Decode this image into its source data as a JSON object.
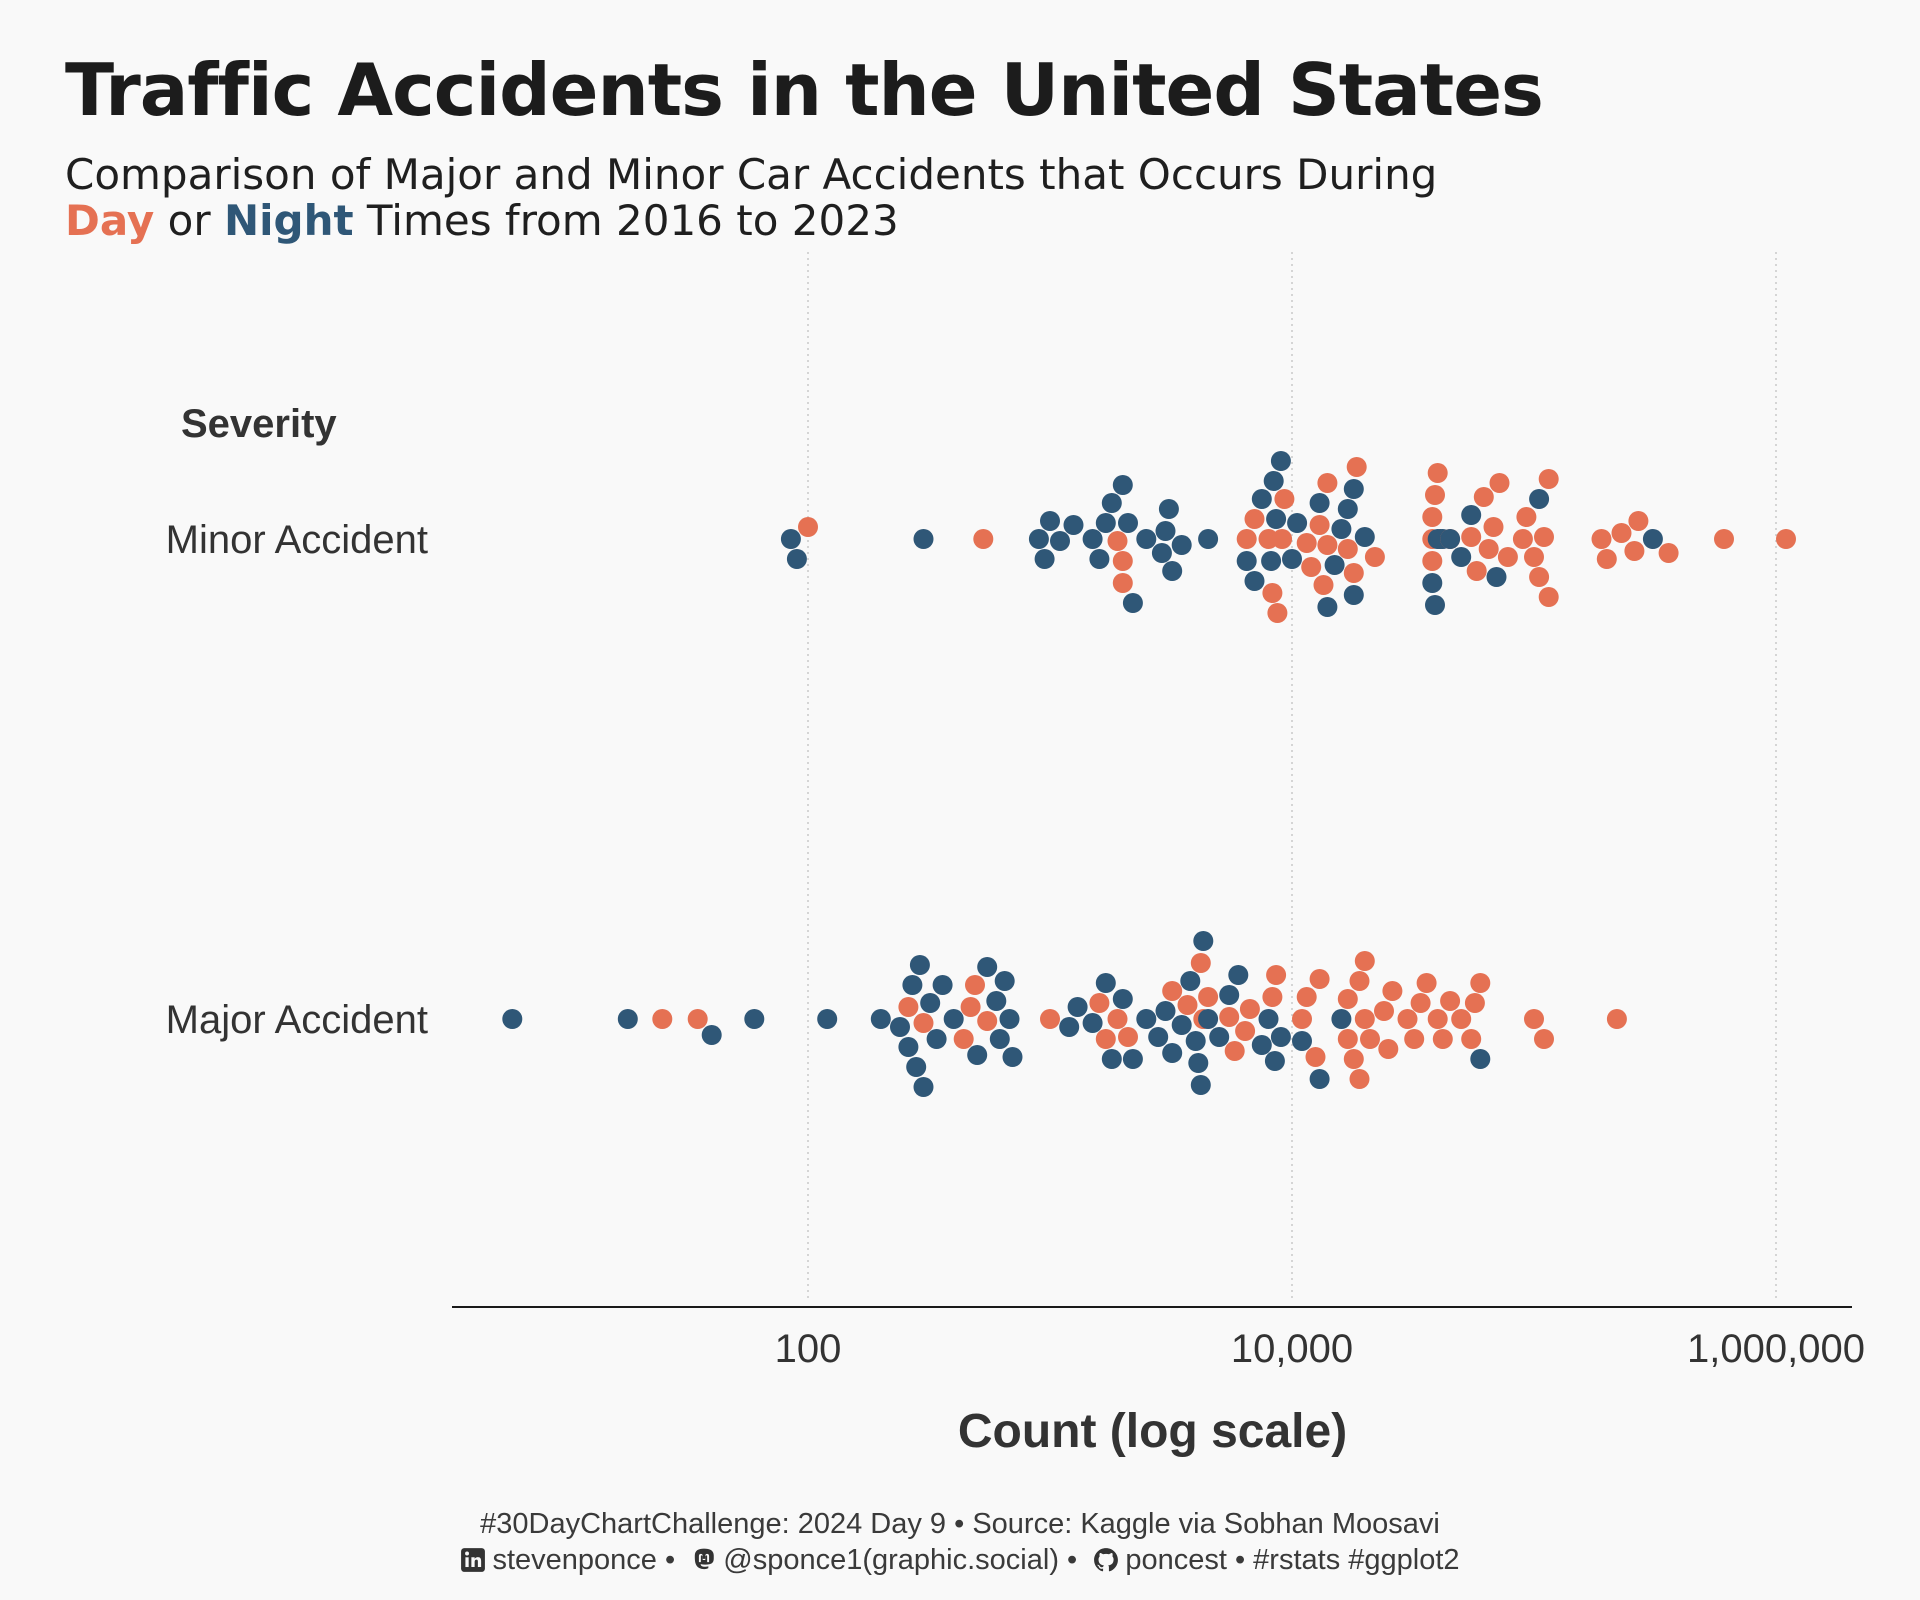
{
  "title": "Traffic Accidents in the United States",
  "subtitle": {
    "line1": "Comparison of Major and Minor Car Accidents that Occurs During",
    "day_word": "Day",
    "or_word": " or ",
    "night_word": "Night",
    "line2_rest": " Times from 2016 to 2023"
  },
  "caption": {
    "line1": "#30DayChartChallenge: 2024 Day 9 • Source: Kaggle via Sobhan Moosavi",
    "linkedin": "stevenponce",
    "sep1": " • ",
    "mastodon": "@sponce1(graphic.social)",
    "sep2": " • ",
    "github": "poncest",
    "tags": " • #rstats #ggplot2",
    "icons": [
      "linkedin-icon",
      "mastodon-icon",
      "github-icon"
    ]
  },
  "colors": {
    "day": "#E57153",
    "night": "#2F5777",
    "background": "#f9f9f9"
  },
  "chart_data": {
    "type": "scatter",
    "subtype": "beeswarm",
    "title": "Traffic Accidents in the United States",
    "xlabel": "Count (log scale)",
    "ylabel": "Severity",
    "x_scale": "log10",
    "xlim": [
      3,
      1500000
    ],
    "x_ticks": [
      100,
      10000,
      1000000
    ],
    "x_tick_labels": [
      "100",
      "10,000",
      "1,000,000"
    ],
    "categories": [
      "Minor Accident",
      "Major Accident"
    ],
    "grid": "vertical dotted at major ticks",
    "series": [
      {
        "name": "Day",
        "color": "#E57153",
        "points": [
          {
            "cat": "Minor Accident",
            "x": 100
          },
          {
            "cat": "Minor Accident",
            "x": 530
          },
          {
            "cat": "Minor Accident",
            "x": 1900
          },
          {
            "cat": "Minor Accident",
            "x": 2000
          },
          {
            "cat": "Minor Accident",
            "x": 2000
          },
          {
            "cat": "Minor Accident",
            "x": 6500
          },
          {
            "cat": "Minor Accident",
            "x": 7000
          },
          {
            "cat": "Minor Accident",
            "x": 8000
          },
          {
            "cat": "Minor Accident",
            "x": 8300
          },
          {
            "cat": "Minor Accident",
            "x": 8700
          },
          {
            "cat": "Minor Accident",
            "x": 9100
          },
          {
            "cat": "Minor Accident",
            "x": 9300
          },
          {
            "cat": "Minor Accident",
            "x": 11500
          },
          {
            "cat": "Minor Accident",
            "x": 12000
          },
          {
            "cat": "Minor Accident",
            "x": 13000
          },
          {
            "cat": "Minor Accident",
            "x": 13500
          },
          {
            "cat": "Minor Accident",
            "x": 14000
          },
          {
            "cat": "Minor Accident",
            "x": 14000
          },
          {
            "cat": "Minor Accident",
            "x": 17000
          },
          {
            "cat": "Minor Accident",
            "x": 18000
          },
          {
            "cat": "Minor Accident",
            "x": 18500
          },
          {
            "cat": "Minor Accident",
            "x": 22000
          },
          {
            "cat": "Minor Accident",
            "x": 38000
          },
          {
            "cat": "Minor Accident",
            "x": 38000
          },
          {
            "cat": "Minor Accident",
            "x": 38000
          },
          {
            "cat": "Minor Accident",
            "x": 39000
          },
          {
            "cat": "Minor Accident",
            "x": 40000
          },
          {
            "cat": "Minor Accident",
            "x": 45000
          },
          {
            "cat": "Minor Accident",
            "x": 55000
          },
          {
            "cat": "Minor Accident",
            "x": 58000
          },
          {
            "cat": "Minor Accident",
            "x": 62000
          },
          {
            "cat": "Minor Accident",
            "x": 65000
          },
          {
            "cat": "Minor Accident",
            "x": 68000
          },
          {
            "cat": "Minor Accident",
            "x": 72000
          },
          {
            "cat": "Minor Accident",
            "x": 78000
          },
          {
            "cat": "Minor Accident",
            "x": 90000
          },
          {
            "cat": "Minor Accident",
            "x": 93000
          },
          {
            "cat": "Minor Accident",
            "x": 100000
          },
          {
            "cat": "Minor Accident",
            "x": 105000
          },
          {
            "cat": "Minor Accident",
            "x": 110000
          },
          {
            "cat": "Minor Accident",
            "x": 115000
          },
          {
            "cat": "Minor Accident",
            "x": 115000
          },
          {
            "cat": "Minor Accident",
            "x": 190000
          },
          {
            "cat": "Minor Accident",
            "x": 200000
          },
          {
            "cat": "Minor Accident",
            "x": 230000
          },
          {
            "cat": "Minor Accident",
            "x": 260000
          },
          {
            "cat": "Minor Accident",
            "x": 270000
          },
          {
            "cat": "Minor Accident",
            "x": 360000
          },
          {
            "cat": "Minor Accident",
            "x": 610000
          },
          {
            "cat": "Minor Accident",
            "x": 1100000
          },
          {
            "cat": "Major Accident",
            "x": 25
          },
          {
            "cat": "Major Accident",
            "x": 35
          },
          {
            "cat": "Major Accident",
            "x": 260
          },
          {
            "cat": "Major Accident",
            "x": 300
          },
          {
            "cat": "Major Accident",
            "x": 440
          },
          {
            "cat": "Major Accident",
            "x": 470
          },
          {
            "cat": "Major Accident",
            "x": 490
          },
          {
            "cat": "Major Accident",
            "x": 550
          },
          {
            "cat": "Major Accident",
            "x": 1000
          },
          {
            "cat": "Major Accident",
            "x": 1600
          },
          {
            "cat": "Major Accident",
            "x": 1700
          },
          {
            "cat": "Major Accident",
            "x": 1900
          },
          {
            "cat": "Major Accident",
            "x": 2100
          },
          {
            "cat": "Major Accident",
            "x": 3200
          },
          {
            "cat": "Major Accident",
            "x": 3700
          },
          {
            "cat": "Major Accident",
            "x": 4200
          },
          {
            "cat": "Major Accident",
            "x": 4300
          },
          {
            "cat": "Major Accident",
            "x": 4500
          },
          {
            "cat": "Major Accident",
            "x": 5500
          },
          {
            "cat": "Major Accident",
            "x": 5800
          },
          {
            "cat": "Major Accident",
            "x": 6400
          },
          {
            "cat": "Major Accident",
            "x": 6700
          },
          {
            "cat": "Major Accident",
            "x": 8300
          },
          {
            "cat": "Major Accident",
            "x": 8600
          },
          {
            "cat": "Major Accident",
            "x": 11000
          },
          {
            "cat": "Major Accident",
            "x": 11500
          },
          {
            "cat": "Major Accident",
            "x": 12500
          },
          {
            "cat": "Major Accident",
            "x": 13000
          },
          {
            "cat": "Major Accident",
            "x": 17000
          },
          {
            "cat": "Major Accident",
            "x": 17000
          },
          {
            "cat": "Major Accident",
            "x": 18000
          },
          {
            "cat": "Major Accident",
            "x": 19000
          },
          {
            "cat": "Major Accident",
            "x": 19000
          },
          {
            "cat": "Major Accident",
            "x": 20000
          },
          {
            "cat": "Major Accident",
            "x": 20000
          },
          {
            "cat": "Major Accident",
            "x": 21000
          },
          {
            "cat": "Major Accident",
            "x": 24000
          },
          {
            "cat": "Major Accident",
            "x": 25000
          },
          {
            "cat": "Major Accident",
            "x": 26000
          },
          {
            "cat": "Major Accident",
            "x": 30000
          },
          {
            "cat": "Major Accident",
            "x": 32000
          },
          {
            "cat": "Major Accident",
            "x": 34000
          },
          {
            "cat": "Major Accident",
            "x": 36000
          },
          {
            "cat": "Major Accident",
            "x": 40000
          },
          {
            "cat": "Major Accident",
            "x": 42000
          },
          {
            "cat": "Major Accident",
            "x": 45000
          },
          {
            "cat": "Major Accident",
            "x": 50000
          },
          {
            "cat": "Major Accident",
            "x": 55000
          },
          {
            "cat": "Major Accident",
            "x": 57000
          },
          {
            "cat": "Major Accident",
            "x": 60000
          },
          {
            "cat": "Major Accident",
            "x": 100000
          },
          {
            "cat": "Major Accident",
            "x": 110000
          },
          {
            "cat": "Major Accident",
            "x": 220000
          }
        ]
      },
      {
        "name": "Night",
        "color": "#2F5777",
        "points": [
          {
            "cat": "Minor Accident",
            "x": 85
          },
          {
            "cat": "Minor Accident",
            "x": 90
          },
          {
            "cat": "Minor Accident",
            "x": 300
          },
          {
            "cat": "Minor Accident",
            "x": 900
          },
          {
            "cat": "Minor Accident",
            "x": 950
          },
          {
            "cat": "Minor Accident",
            "x": 1000
          },
          {
            "cat": "Minor Accident",
            "x": 1100
          },
          {
            "cat": "Minor Accident",
            "x": 1250
          },
          {
            "cat": "Minor Accident",
            "x": 1500
          },
          {
            "cat": "Minor Accident",
            "x": 1600
          },
          {
            "cat": "Minor Accident",
            "x": 1700
          },
          {
            "cat": "Minor Accident",
            "x": 1800
          },
          {
            "cat": "Minor Accident",
            "x": 2000
          },
          {
            "cat": "Minor Accident",
            "x": 2100
          },
          {
            "cat": "Minor Accident",
            "x": 2200
          },
          {
            "cat": "Minor Accident",
            "x": 2500
          },
          {
            "cat": "Minor Accident",
            "x": 2900
          },
          {
            "cat": "Minor Accident",
            "x": 3000
          },
          {
            "cat": "Minor Accident",
            "x": 3100
          },
          {
            "cat": "Minor Accident",
            "x": 3200
          },
          {
            "cat": "Minor Accident",
            "x": 3500
          },
          {
            "cat": "Minor Accident",
            "x": 4500
          },
          {
            "cat": "Minor Accident",
            "x": 6500
          },
          {
            "cat": "Minor Accident",
            "x": 7000
          },
          {
            "cat": "Minor Accident",
            "x": 7500
          },
          {
            "cat": "Minor Accident",
            "x": 8200
          },
          {
            "cat": "Minor Accident",
            "x": 8400
          },
          {
            "cat": "Minor Accident",
            "x": 8600
          },
          {
            "cat": "Minor Accident",
            "x": 9000
          },
          {
            "cat": "Minor Accident",
            "x": 10000
          },
          {
            "cat": "Minor Accident",
            "x": 10500
          },
          {
            "cat": "Minor Accident",
            "x": 13000
          },
          {
            "cat": "Minor Accident",
            "x": 14000
          },
          {
            "cat": "Minor Accident",
            "x": 15000
          },
          {
            "cat": "Minor Accident",
            "x": 16000
          },
          {
            "cat": "Minor Accident",
            "x": 17000
          },
          {
            "cat": "Minor Accident",
            "x": 18000
          },
          {
            "cat": "Minor Accident",
            "x": 18000
          },
          {
            "cat": "Minor Accident",
            "x": 20000
          },
          {
            "cat": "Minor Accident",
            "x": 38000
          },
          {
            "cat": "Minor Accident",
            "x": 39000
          },
          {
            "cat": "Minor Accident",
            "x": 40000
          },
          {
            "cat": "Minor Accident",
            "x": 41000
          },
          {
            "cat": "Minor Accident",
            "x": 42000
          },
          {
            "cat": "Minor Accident",
            "x": 45000
          },
          {
            "cat": "Minor Accident",
            "x": 50000
          },
          {
            "cat": "Minor Accident",
            "x": 55000
          },
          {
            "cat": "Minor Accident",
            "x": 70000
          },
          {
            "cat": "Minor Accident",
            "x": 105000
          },
          {
            "cat": "Minor Accident",
            "x": 310000
          },
          {
            "cat": "Major Accident",
            "x": 6
          },
          {
            "cat": "Major Accident",
            "x": 18
          },
          {
            "cat": "Major Accident",
            "x": 40
          },
          {
            "cat": "Major Accident",
            "x": 60
          },
          {
            "cat": "Major Accident",
            "x": 120
          },
          {
            "cat": "Major Accident",
            "x": 200
          },
          {
            "cat": "Major Accident",
            "x": 240
          },
          {
            "cat": "Major Accident",
            "x": 260
          },
          {
            "cat": "Major Accident",
            "x": 270
          },
          {
            "cat": "Major Accident",
            "x": 280
          },
          {
            "cat": "Major Accident",
            "x": 290
          },
          {
            "cat": "Major Accident",
            "x": 300
          },
          {
            "cat": "Major Accident",
            "x": 320
          },
          {
            "cat": "Major Accident",
            "x": 340
          },
          {
            "cat": "Major Accident",
            "x": 360
          },
          {
            "cat": "Major Accident",
            "x": 400
          },
          {
            "cat": "Major Accident",
            "x": 500
          },
          {
            "cat": "Major Accident",
            "x": 550
          },
          {
            "cat": "Major Accident",
            "x": 600
          },
          {
            "cat": "Major Accident",
            "x": 620
          },
          {
            "cat": "Major Accident",
            "x": 650
          },
          {
            "cat": "Major Accident",
            "x": 680
          },
          {
            "cat": "Major Accident",
            "x": 700
          },
          {
            "cat": "Major Accident",
            "x": 1200
          },
          {
            "cat": "Major Accident",
            "x": 1300
          },
          {
            "cat": "Major Accident",
            "x": 1500
          },
          {
            "cat": "Major Accident",
            "x": 1700
          },
          {
            "cat": "Major Accident",
            "x": 1800
          },
          {
            "cat": "Major Accident",
            "x": 2000
          },
          {
            "cat": "Major Accident",
            "x": 2200
          },
          {
            "cat": "Major Accident",
            "x": 2500
          },
          {
            "cat": "Major Accident",
            "x": 2800
          },
          {
            "cat": "Major Accident",
            "x": 3000
          },
          {
            "cat": "Major Accident",
            "x": 3200
          },
          {
            "cat": "Major Accident",
            "x": 3500
          },
          {
            "cat": "Major Accident",
            "x": 3800
          },
          {
            "cat": "Major Accident",
            "x": 4000
          },
          {
            "cat": "Major Accident",
            "x": 4100
          },
          {
            "cat": "Major Accident",
            "x": 4200
          },
          {
            "cat": "Major Accident",
            "x": 4300
          },
          {
            "cat": "Major Accident",
            "x": 4500
          },
          {
            "cat": "Major Accident",
            "x": 5000
          },
          {
            "cat": "Major Accident",
            "x": 5500
          },
          {
            "cat": "Major Accident",
            "x": 6000
          },
          {
            "cat": "Major Accident",
            "x": 7500
          },
          {
            "cat": "Major Accident",
            "x": 8000
          },
          {
            "cat": "Major Accident",
            "x": 8500
          },
          {
            "cat": "Major Accident",
            "x": 9000
          },
          {
            "cat": "Major Accident",
            "x": 11000
          },
          {
            "cat": "Major Accident",
            "x": 13000
          },
          {
            "cat": "Major Accident",
            "x": 16000
          },
          {
            "cat": "Major Accident",
            "x": 60000
          }
        ]
      }
    ]
  }
}
